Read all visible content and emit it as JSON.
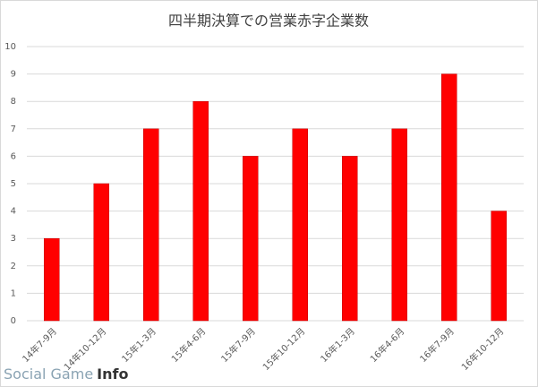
{
  "chart_data": {
    "type": "bar",
    "title": "四半期決算での営業赤字企業数",
    "categories": [
      "14年7-9月",
      "14年10-12月",
      "15年1-3月",
      "15年4-6月",
      "15年7-9月",
      "15年10-12月",
      "16年1-3月",
      "16年4-6月",
      "16年7-9月",
      "16年10-12月"
    ],
    "values": [
      3,
      5,
      7,
      8,
      6,
      7,
      6,
      7,
      9,
      4
    ],
    "color": "#ff0000",
    "ylim": [
      0,
      10
    ],
    "yticks": [
      0,
      1,
      2,
      3,
      4,
      5,
      6,
      7,
      8,
      9,
      10
    ],
    "grid": true
  },
  "watermark": {
    "first": "Social Game",
    "second": "Info"
  }
}
